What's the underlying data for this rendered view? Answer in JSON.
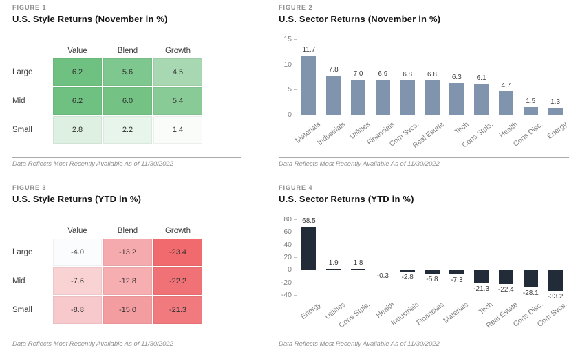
{
  "figures": [
    {
      "label": "FIGURE 1",
      "title": "U.S. Style Returns (November in %)",
      "footnote": "Data Reflects Most Recently Available As of 11/30/2022",
      "chart_data": {
        "type": "heatmap",
        "columns": [
          "Value",
          "Blend",
          "Growth"
        ],
        "rows": [
          "Large",
          "Mid",
          "Small"
        ],
        "values": [
          [
            6.2,
            5.6,
            4.5
          ],
          [
            6.2,
            6.0,
            5.4
          ],
          [
            2.8,
            2.2,
            1.4
          ]
        ],
        "cell_colors": [
          [
            "#6fc181",
            "#7ec78f",
            "#a7d8b1"
          ],
          [
            "#6fc181",
            "#74c385",
            "#89cb97"
          ],
          [
            "#ddf0e1",
            "#e7f5ea",
            "#f9fcf9"
          ]
        ]
      }
    },
    {
      "label": "FIGURE 2",
      "title": "U.S. Sector Returns (November in %)",
      "footnote": "Data Reflects Most Recently Available As of 11/30/2022",
      "chart_data": {
        "type": "bar",
        "categories": [
          "Materials",
          "Industrials",
          "Utilities",
          "Financials",
          "Com Svcs.",
          "Real Estate",
          "Tech",
          "Cons Stpls.",
          "Health",
          "Cons Disc.",
          "Energy"
        ],
        "values": [
          11.7,
          7.8,
          7.0,
          6.9,
          6.8,
          6.8,
          6.3,
          6.1,
          4.7,
          1.5,
          1.3
        ],
        "ylim": [
          0,
          15
        ],
        "yticks": [
          15,
          10,
          5,
          0
        ],
        "bar_color": "#8094ae",
        "legend": "none",
        "grid": "off"
      }
    },
    {
      "label": "FIGURE 3",
      "title": "U.S. Style Returns (YTD in %)",
      "footnote": "Data Reflects Most Recently Available As of 11/30/2022",
      "chart_data": {
        "type": "heatmap",
        "columns": [
          "Value",
          "Blend",
          "Growth"
        ],
        "rows": [
          "Large",
          "Mid",
          "Small"
        ],
        "values": [
          [
            -4.0,
            -13.2,
            -23.4
          ],
          [
            -7.6,
            -12.8,
            -22.2
          ],
          [
            -8.8,
            -15.0,
            -21.3
          ]
        ],
        "cell_colors": [
          [
            "#fbfcfd",
            "#f5abae",
            "#f16b6e"
          ],
          [
            "#f9d2d4",
            "#f6aeb1",
            "#f07276"
          ],
          [
            "#f8c9cc",
            "#f49da0",
            "#f07a7e"
          ]
        ]
      }
    },
    {
      "label": "FIGURE 4",
      "title": "U.S. Sector Returns (YTD in %)",
      "footnote": "Data Reflects Most Recently Available As of 11/30/2022",
      "chart_data": {
        "type": "bar",
        "categories": [
          "Energy",
          "Utilities",
          "Cons Stpls.",
          "Health",
          "Industrials",
          "Financials",
          "Materials",
          "Tech",
          "Real Estate",
          "Cons Disc.",
          "Com Svcs."
        ],
        "values": [
          68.5,
          1.9,
          1.8,
          -0.3,
          -2.8,
          -5.8,
          -7.3,
          -21.3,
          -22.4,
          -28.1,
          -33.2
        ],
        "ylim": [
          -40,
          80
        ],
        "yticks": [
          80,
          60,
          40,
          20,
          0,
          -20,
          -40
        ],
        "bar_color": "#222b38",
        "legend": "none",
        "grid": "off"
      }
    }
  ]
}
